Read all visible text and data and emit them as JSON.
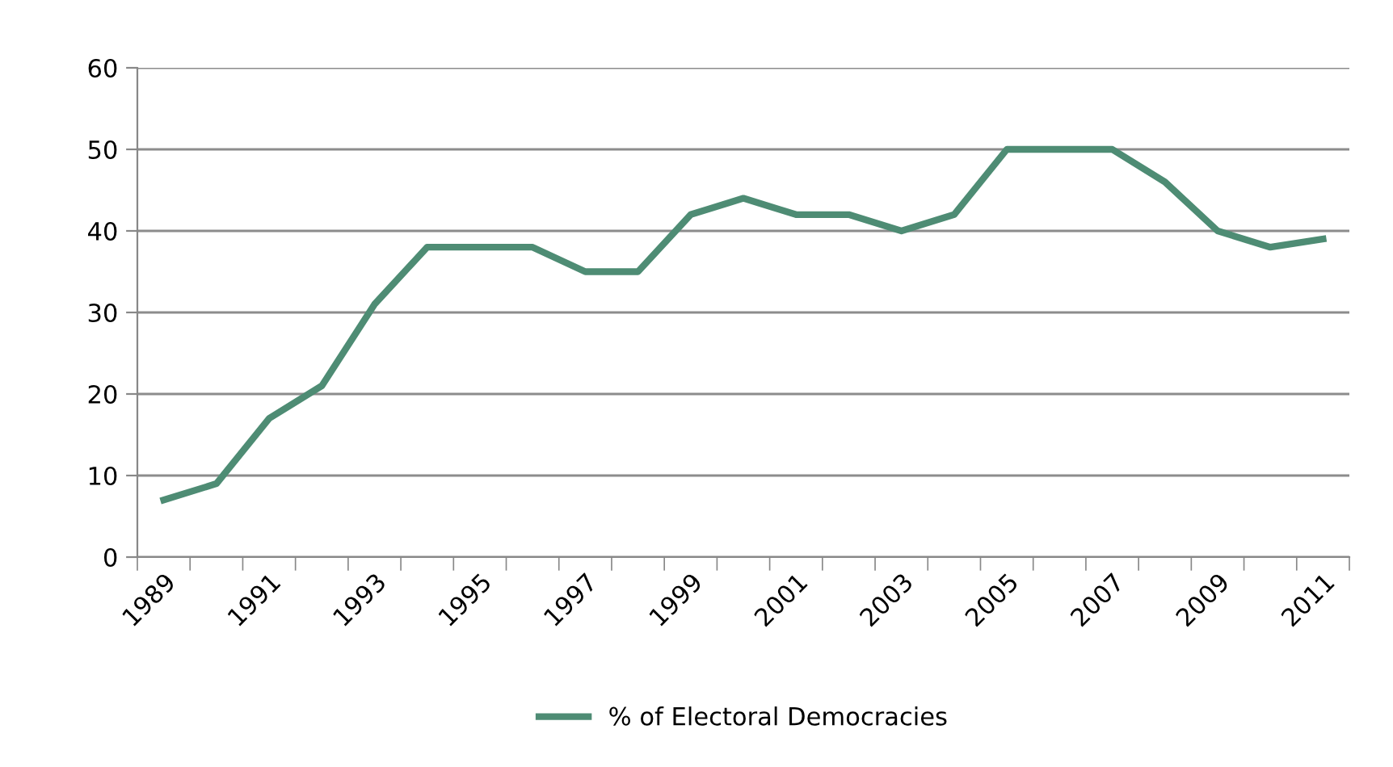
{
  "chart_data": {
    "type": "line",
    "categories": [
      "1989",
      null,
      "1991",
      null,
      "1993",
      null,
      "1995",
      null,
      "1997",
      null,
      "1999",
      null,
      "2001",
      null,
      "2003",
      null,
      "2005",
      null,
      "2007",
      null,
      "2009",
      null,
      "2011"
    ],
    "series": [
      {
        "name": "% of Electoral Democracies",
        "color": "#4e8c74",
        "values": [
          7,
          9,
          17,
          21,
          31,
          38,
          38,
          38,
          35,
          35,
          42,
          44,
          42,
          42,
          40,
          42,
          50,
          50,
          50,
          46,
          40,
          38,
          39
        ]
      }
    ],
    "ylim": [
      0,
      60
    ],
    "yticks": [
      0,
      10,
      20,
      30,
      40,
      50,
      60
    ],
    "grid": "y",
    "legend": "bottom",
    "marker": "none",
    "line_style": "solid"
  }
}
